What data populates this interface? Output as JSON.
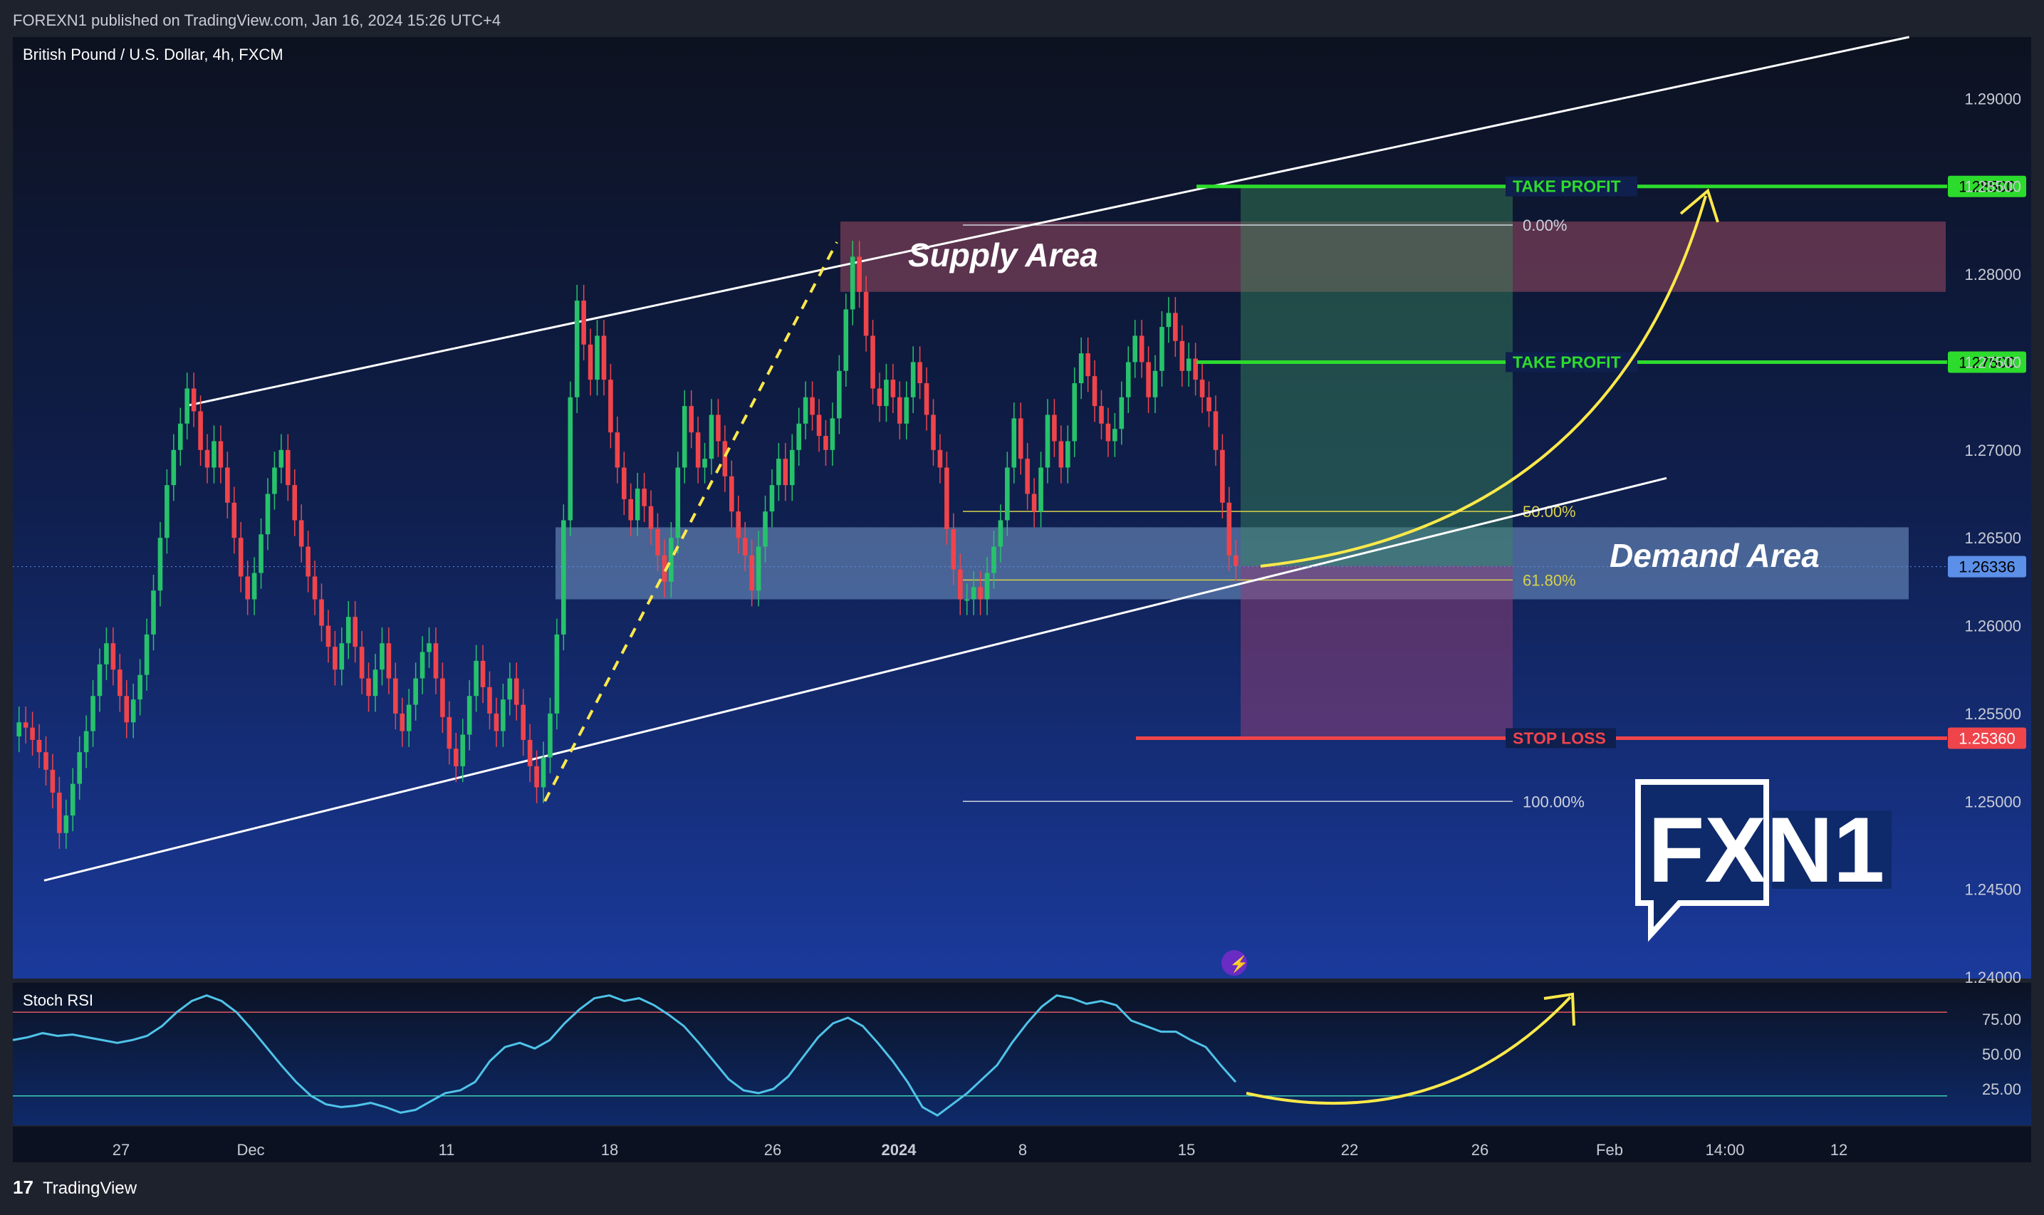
{
  "header": {
    "publisher_line": "FOREXN1 published on TradingView.com, Jan 16, 2024 15:26 UTC+4"
  },
  "footer": {
    "brand": "TradingView"
  },
  "chart_data": [
    {
      "type": "candlestick",
      "title": "British Pound / U.S. Dollar, 4h, FXCM",
      "price_axis": {
        "ylim": [
          1.24,
          1.2935
        ],
        "ticks": [
          "1.29000",
          "1.28500",
          "1.28000",
          "1.27500",
          "1.27000",
          "1.26500",
          "1.26000",
          "1.25500",
          "1.25000",
          "1.24500",
          "1.24000"
        ],
        "current_price_badge": "1.26336",
        "level_badges": [
          "1.28500",
          "1.27500",
          "1.25360"
        ]
      },
      "time_axis": {
        "labels": [
          "27",
          "Dec",
          "11",
          "18",
          "26",
          "2024",
          "8",
          "15",
          "22",
          "26",
          "Feb",
          "14:00",
          "12"
        ]
      },
      "candles_close": [
        1.2545,
        1.2542,
        1.2535,
        1.2528,
        1.2518,
        1.2505,
        1.2482,
        1.2492,
        1.251,
        1.2528,
        1.254,
        1.256,
        1.2578,
        1.259,
        1.2575,
        1.256,
        1.2545,
        1.2558,
        1.2572,
        1.2595,
        1.262,
        1.265,
        1.268,
        1.27,
        1.2715,
        1.2735,
        1.2722,
        1.27,
        1.269,
        1.2705,
        1.269,
        1.267,
        1.265,
        1.2628,
        1.2615,
        1.263,
        1.2652,
        1.2675,
        1.269,
        1.27,
        1.268,
        1.266,
        1.2645,
        1.2628,
        1.2615,
        1.26,
        1.2588,
        1.2575,
        1.259,
        1.2605,
        1.2588,
        1.257,
        1.256,
        1.2575,
        1.259,
        1.257,
        1.255,
        1.254,
        1.2555,
        1.257,
        1.2585,
        1.259,
        1.257,
        1.2548,
        1.253,
        1.252,
        1.2538,
        1.256,
        1.258,
        1.2565,
        1.255,
        1.254,
        1.2558,
        1.257,
        1.2555,
        1.2535,
        1.252,
        1.2508,
        1.2525,
        1.255,
        1.2595,
        1.266,
        1.273,
        1.2785,
        1.276,
        1.274,
        1.2765,
        1.274,
        1.271,
        1.269,
        1.2672,
        1.266,
        1.2678,
        1.2668,
        1.2655,
        1.264,
        1.2625,
        1.265,
        1.269,
        1.2725,
        1.271,
        1.269,
        1.2695,
        1.272,
        1.2705,
        1.2685,
        1.2665,
        1.265,
        1.264,
        1.262,
        1.2645,
        1.2665,
        1.268,
        1.2695,
        1.268,
        1.27,
        1.2715,
        1.273,
        1.272,
        1.2708,
        1.27,
        1.2718,
        1.2745,
        1.278,
        1.281,
        1.279,
        1.2765,
        1.2735,
        1.2725,
        1.274,
        1.273,
        1.2715,
        1.273,
        1.275,
        1.2738,
        1.272,
        1.27,
        1.269,
        1.2655,
        1.2632,
        1.2615,
        1.2615,
        1.2622,
        1.2615,
        1.263,
        1.2645,
        1.266,
        1.269,
        1.2718,
        1.2695,
        1.2675,
        1.2665,
        1.269,
        1.272,
        1.2705,
        1.269,
        1.2705,
        1.2738,
        1.2755,
        1.2742,
        1.2725,
        1.2715,
        1.2705,
        1.2712,
        1.273,
        1.275,
        1.2765,
        1.275,
        1.273,
        1.2745,
        1.277,
        1.2778,
        1.2762,
        1.2745,
        1.2752,
        1.274,
        1.273,
        1.2722,
        1.27,
        1.267,
        1.264,
        1.2634
      ],
      "zones": {
        "supply": {
          "label": "Supply Area",
          "from": 1.279,
          "to": 1.283
        },
        "demand": {
          "label": "Demand Area",
          "from": 1.2615,
          "to": 1.2656
        }
      },
      "levels": [
        {
          "label": "TAKE PROFIT",
          "price": 1.285,
          "color": "#2ddb2d"
        },
        {
          "label": "TAKE PROFIT",
          "price": 1.275,
          "color": "#2ddb2d"
        },
        {
          "label": "STOP LOSS",
          "price": 1.2536,
          "color": "#f0444b"
        }
      ],
      "fib": [
        {
          "label": "0.00%",
          "price": 1.2828
        },
        {
          "label": "50.00%",
          "price": 1.2665
        },
        {
          "label": "61.80%",
          "price": 1.2626
        },
        {
          "label": "100.00%",
          "price": 1.25
        }
      ],
      "channel": {
        "upper": [
          [
            0.0,
            1.2725
          ],
          [
            0.98,
            1.2935
          ]
        ],
        "lower": [
          [
            0.0,
            1.2455
          ],
          [
            0.93,
            1.2684
          ]
        ]
      }
    },
    {
      "type": "line",
      "title": "Stoch RSI",
      "ticks": [
        "75.00",
        "50.00",
        "25.00"
      ],
      "ylim": [
        0,
        100
      ],
      "upper_band": 80,
      "lower_band": 20,
      "values": [
        60,
        62,
        65,
        63,
        64,
        62,
        60,
        58,
        60,
        63,
        70,
        80,
        88,
        92,
        88,
        80,
        68,
        55,
        42,
        30,
        20,
        14,
        12,
        13,
        15,
        12,
        8,
        10,
        16,
        22,
        24,
        30,
        45,
        55,
        58,
        54,
        60,
        72,
        82,
        90,
        92,
        88,
        90,
        85,
        78,
        70,
        58,
        45,
        32,
        24,
        22,
        25,
        34,
        48,
        62,
        72,
        76,
        70,
        58,
        45,
        30,
        12,
        6,
        14,
        22,
        32,
        42,
        58,
        72,
        84,
        92,
        90,
        86,
        88,
        85,
        74,
        70,
        66,
        66,
        60,
        55,
        42,
        30
      ]
    }
  ],
  "watermark": "FXN1"
}
